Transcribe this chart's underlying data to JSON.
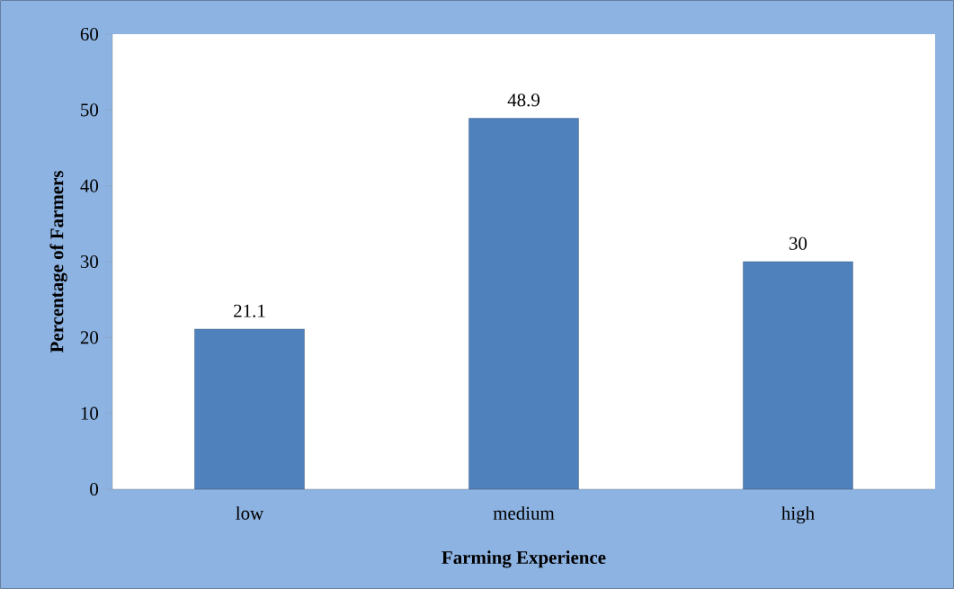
{
  "chart_data": {
    "type": "bar",
    "xlabel": "Farming Experience",
    "ylabel": "Percentage of Farmers",
    "categories": [
      "low",
      "medium",
      "high"
    ],
    "values": [
      21.1,
      48.9,
      30
    ],
    "color": "#4f81bd",
    "ylim": [
      0,
      60
    ],
    "yticks": [
      0,
      10,
      20,
      30,
      40,
      50,
      60
    ],
    "data_labels": true,
    "grid": false
  }
}
